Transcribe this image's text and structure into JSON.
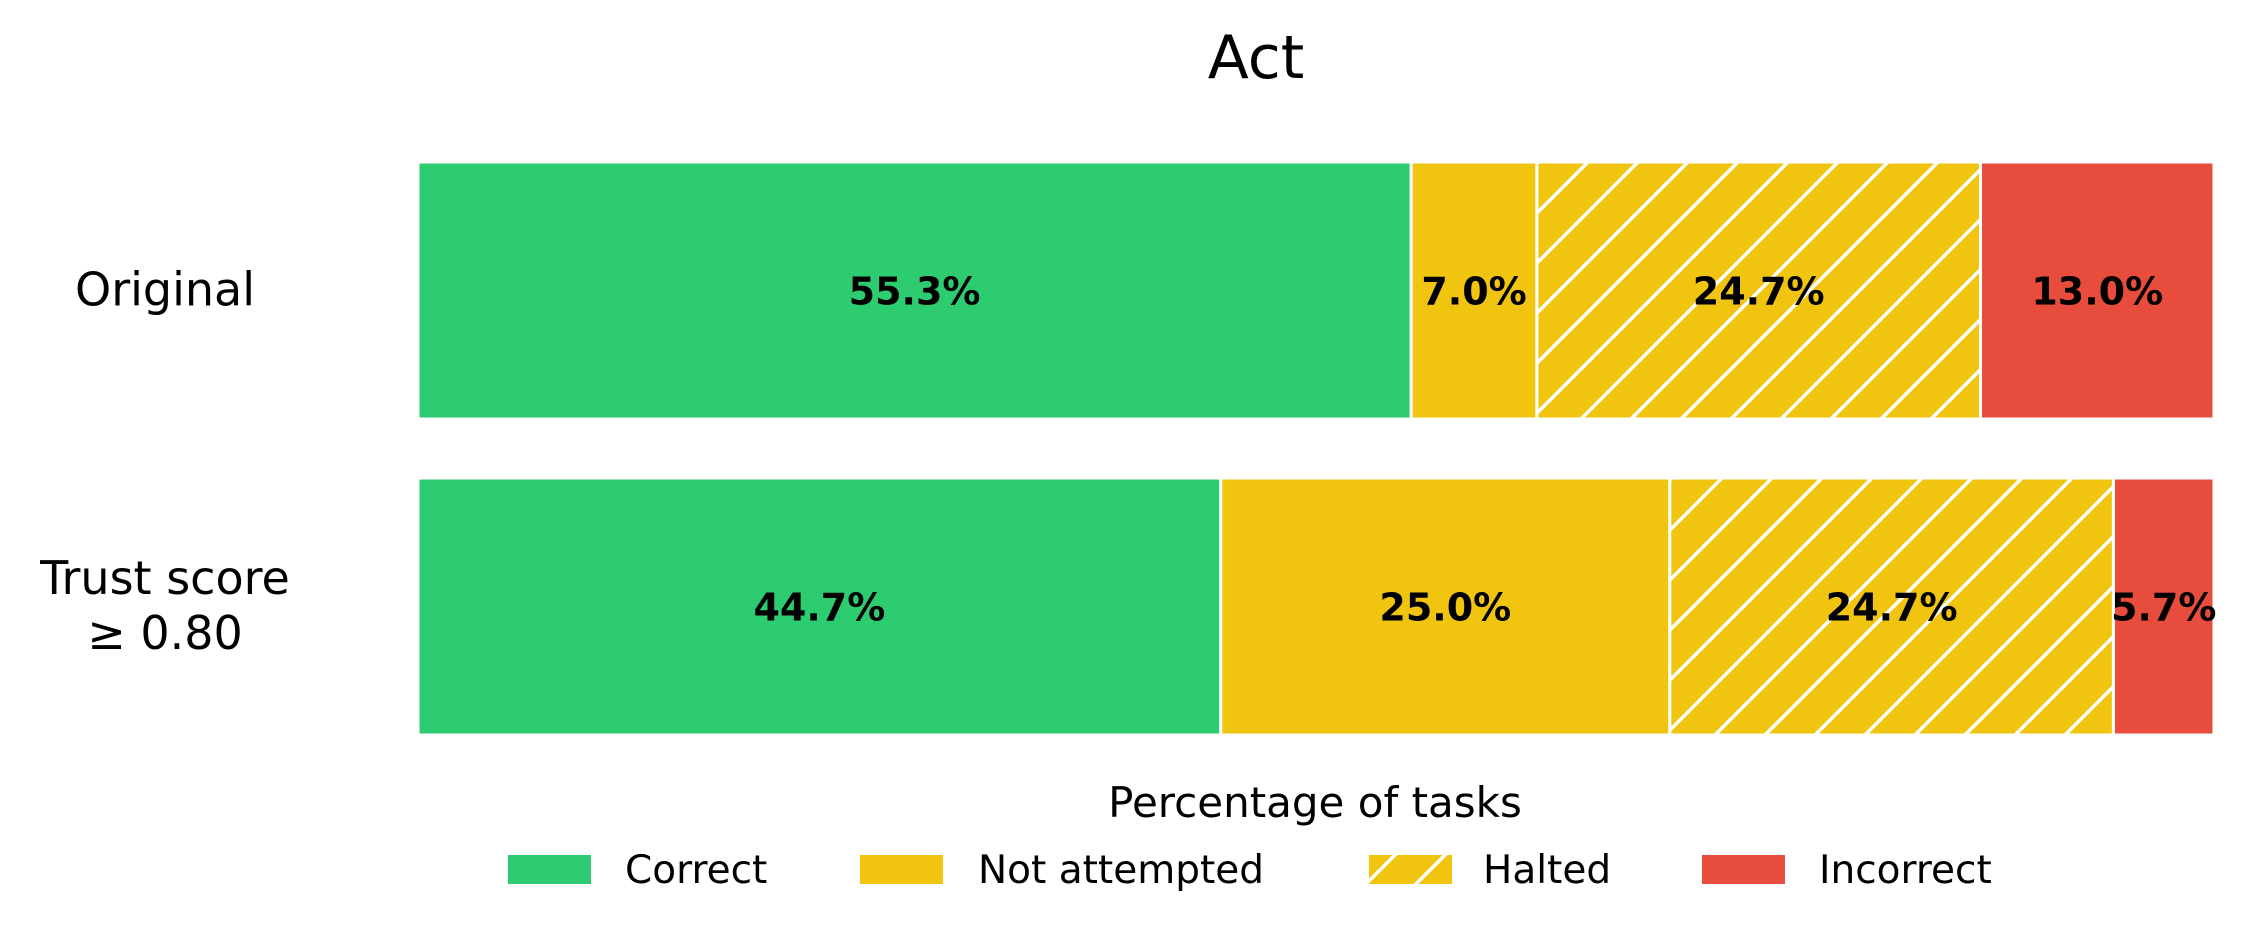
{
  "chart_data": {
    "type": "bar",
    "orientation": "horizontal",
    "stacked": true,
    "title": "Act",
    "xlabel": "Percentage of tasks",
    "ylabel": "",
    "xlim": [
      0,
      100
    ],
    "grid": false,
    "legend_position": "bottom",
    "categories": [
      "Original",
      "Trust score\n≥ 0.80"
    ],
    "category_lines": [
      [
        "Original"
      ],
      [
        "Trust score",
        "≥ 0.80"
      ]
    ],
    "series": [
      {
        "name": "Correct",
        "color": "#2ecc71",
        "hatch": false,
        "values": [
          55.3,
          44.7
        ],
        "labels": [
          "55.3%",
          "44.7%"
        ]
      },
      {
        "name": "Not attempted",
        "color": "#f1c40f",
        "hatch": false,
        "values": [
          7.0,
          25.0
        ],
        "labels": [
          "7.0%",
          "25.0%"
        ]
      },
      {
        "name": "Halted",
        "color": "#f1c40f",
        "hatch": true,
        "values": [
          24.7,
          24.7
        ],
        "labels": [
          "24.7%",
          "24.7%"
        ]
      },
      {
        "name": "Incorrect",
        "color": "#e74c3c",
        "hatch": false,
        "values": [
          13.0,
          5.7
        ],
        "labels": [
          "13.0%",
          "5.7%"
        ]
      }
    ]
  }
}
